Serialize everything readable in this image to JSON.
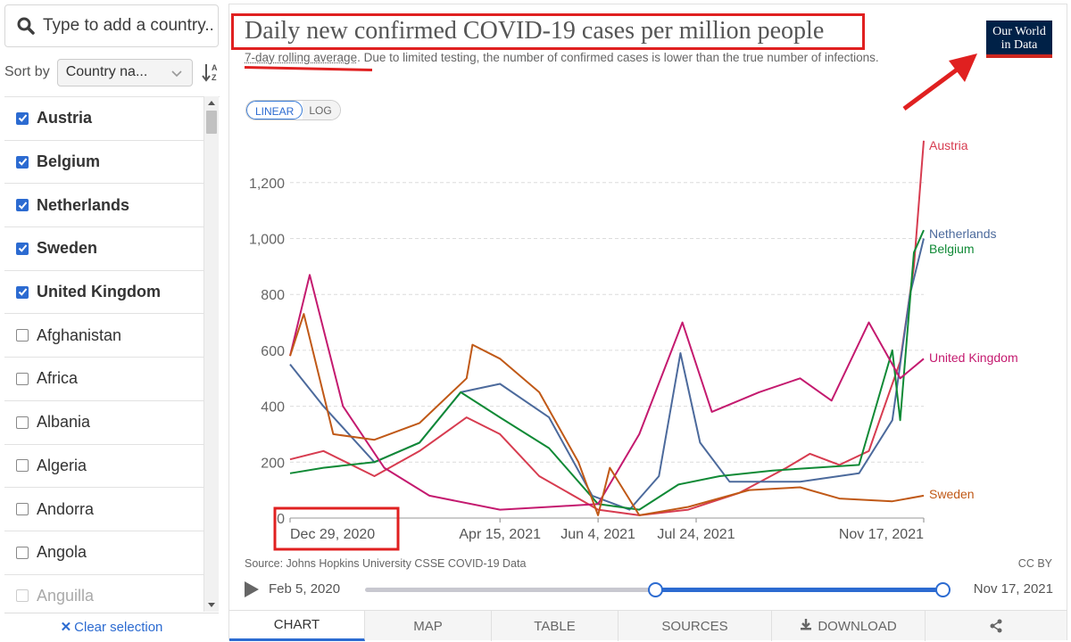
{
  "sidebar": {
    "search_placeholder": "Type to add a country...",
    "sort_label": "Sort by",
    "sort_value": "Country na...",
    "countries": [
      {
        "name": "Austria",
        "checked": true
      },
      {
        "name": "Belgium",
        "checked": true
      },
      {
        "name": "Netherlands",
        "checked": true
      },
      {
        "name": "Sweden",
        "checked": true
      },
      {
        "name": "United Kingdom",
        "checked": true
      },
      {
        "name": "Afghanistan",
        "checked": false
      },
      {
        "name": "Africa",
        "checked": false
      },
      {
        "name": "Albania",
        "checked": false
      },
      {
        "name": "Algeria",
        "checked": false
      },
      {
        "name": "Andorra",
        "checked": false
      },
      {
        "name": "Angola",
        "checked": false
      },
      {
        "name": "Anguilla",
        "checked": false
      }
    ],
    "clear_label": "Clear selection"
  },
  "header": {
    "title": "Daily new confirmed COVID-19 cases per million people",
    "subtitle_lead": "7-day rolling average",
    "subtitle_rest": ". Due to limited testing, the number of confirmed cases is lower than the true number of infections.",
    "logo_line1": "Our World",
    "logo_line2": "in Data"
  },
  "scale": {
    "linear": "LINEAR",
    "log": "LOG",
    "active": "linear"
  },
  "footer": {
    "source": "Source: Johns Hopkins University CSSE COVID-19 Data",
    "license": "CC BY",
    "time_start": "Feb 5, 2020",
    "time_end": "Nov 17, 2021"
  },
  "tabs": [
    "CHART",
    "MAP",
    "TABLE",
    "SOURCES",
    "DOWNLOAD"
  ],
  "active_tab": "CHART",
  "colors": {
    "Austria": "#d73c50",
    "Netherlands": "#4c6a9c",
    "Belgium": "#108a36",
    "United Kingdom": "#c41a6f",
    "Sweden": "#c05917",
    "accent": "#2c6bd1",
    "annotation": "#e02020"
  },
  "chart_data": {
    "type": "line",
    "title": "Daily new confirmed COVID-19 cases per million people",
    "subtitle": "7-day rolling average. Due to limited testing, the number of confirmed cases is lower than the true number of infections.",
    "x_range": [
      "2020-12-29",
      "2021-11-17"
    ],
    "x_ticks": [
      "Dec 29, 2020",
      "Apr 15, 2021",
      "Jun 4, 2021",
      "Jul 24, 2021",
      "Nov 17, 2021"
    ],
    "y_ticks": [
      0,
      200,
      400,
      600,
      800,
      1000,
      1200
    ],
    "ylim": [
      0,
      1400
    ],
    "grid": "horizontal dashed",
    "legend": "line-end labels",
    "series": [
      {
        "name": "Austria",
        "points": [
          [
            "2020-12-29",
            210
          ],
          [
            "2021-01-15",
            240
          ],
          [
            "2021-02-10",
            150
          ],
          [
            "2021-03-05",
            240
          ],
          [
            "2021-03-29",
            360
          ],
          [
            "2021-04-15",
            300
          ],
          [
            "2021-05-05",
            150
          ],
          [
            "2021-06-04",
            30
          ],
          [
            "2021-06-25",
            10
          ],
          [
            "2021-07-20",
            30
          ],
          [
            "2021-08-15",
            90
          ],
          [
            "2021-09-08",
            180
          ],
          [
            "2021-09-20",
            230
          ],
          [
            "2021-10-05",
            190
          ],
          [
            "2021-10-20",
            240
          ],
          [
            "2021-11-05",
            560
          ],
          [
            "2021-11-12",
            900
          ],
          [
            "2021-11-17",
            1350
          ]
        ]
      },
      {
        "name": "Netherlands",
        "points": [
          [
            "2020-12-29",
            550
          ],
          [
            "2021-01-15",
            400
          ],
          [
            "2021-02-10",
            200
          ],
          [
            "2021-03-05",
            270
          ],
          [
            "2021-03-26",
            450
          ],
          [
            "2021-04-15",
            480
          ],
          [
            "2021-05-10",
            360
          ],
          [
            "2021-06-01",
            80
          ],
          [
            "2021-06-20",
            30
          ],
          [
            "2021-07-05",
            150
          ],
          [
            "2021-07-16",
            590
          ],
          [
            "2021-07-26",
            270
          ],
          [
            "2021-08-10",
            130
          ],
          [
            "2021-09-15",
            130
          ],
          [
            "2021-10-15",
            160
          ],
          [
            "2021-11-01",
            350
          ],
          [
            "2021-11-10",
            800
          ],
          [
            "2021-11-17",
            1000
          ]
        ]
      },
      {
        "name": "Belgium",
        "points": [
          [
            "2020-12-29",
            160
          ],
          [
            "2021-01-15",
            180
          ],
          [
            "2021-02-10",
            200
          ],
          [
            "2021-03-05",
            270
          ],
          [
            "2021-03-26",
            450
          ],
          [
            "2021-04-15",
            360
          ],
          [
            "2021-05-10",
            250
          ],
          [
            "2021-06-04",
            50
          ],
          [
            "2021-06-25",
            30
          ],
          [
            "2021-07-15",
            120
          ],
          [
            "2021-08-05",
            150
          ],
          [
            "2021-09-01",
            170
          ],
          [
            "2021-10-15",
            190
          ],
          [
            "2021-11-01",
            600
          ],
          [
            "2021-11-05",
            350
          ],
          [
            "2021-11-12",
            950
          ],
          [
            "2021-11-17",
            1030
          ]
        ]
      },
      {
        "name": "United Kingdom",
        "points": [
          [
            "2020-12-29",
            580
          ],
          [
            "2021-01-08",
            870
          ],
          [
            "2021-01-25",
            400
          ],
          [
            "2021-02-15",
            180
          ],
          [
            "2021-03-10",
            80
          ],
          [
            "2021-04-15",
            30
          ],
          [
            "2021-05-10",
            40
          ],
          [
            "2021-06-04",
            50
          ],
          [
            "2021-06-25",
            300
          ],
          [
            "2021-07-17",
            700
          ],
          [
            "2021-08-01",
            380
          ],
          [
            "2021-08-25",
            450
          ],
          [
            "2021-09-15",
            500
          ],
          [
            "2021-10-01",
            420
          ],
          [
            "2021-10-20",
            700
          ],
          [
            "2021-11-05",
            500
          ],
          [
            "2021-11-17",
            570
          ]
        ]
      },
      {
        "name": "Sweden",
        "points": [
          [
            "2020-12-29",
            580
          ],
          [
            "2021-01-05",
            730
          ],
          [
            "2021-01-20",
            300
          ],
          [
            "2021-02-10",
            280
          ],
          [
            "2021-03-05",
            340
          ],
          [
            "2021-03-29",
            500
          ],
          [
            "2021-04-01",
            620
          ],
          [
            "2021-04-15",
            570
          ],
          [
            "2021-05-05",
            450
          ],
          [
            "2021-05-25",
            200
          ],
          [
            "2021-06-04",
            10
          ],
          [
            "2021-06-10",
            180
          ],
          [
            "2021-06-25",
            10
          ],
          [
            "2021-07-20",
            40
          ],
          [
            "2021-08-20",
            100
          ],
          [
            "2021-09-15",
            110
          ],
          [
            "2021-10-05",
            70
          ],
          [
            "2021-11-01",
            60
          ],
          [
            "2021-11-17",
            80
          ]
        ]
      }
    ]
  }
}
